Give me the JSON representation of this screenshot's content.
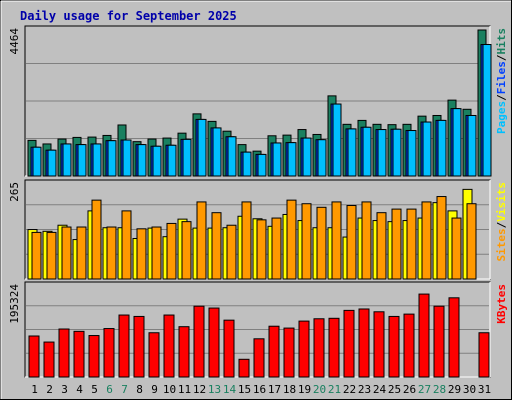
{
  "chart_data": {
    "type": "bar",
    "title": "Daily usage for September 2025",
    "x": [
      "1",
      "2",
      "3",
      "4",
      "5",
      "6",
      "7",
      "8",
      "9",
      "10",
      "11",
      "12",
      "13",
      "14",
      "15",
      "16",
      "17",
      "18",
      "19",
      "20",
      "21",
      "22",
      "23",
      "24",
      "25",
      "26",
      "27",
      "28",
      "29",
      "30",
      "31"
    ],
    "weekend_days": [
      "6",
      "7",
      "13",
      "14",
      "20",
      "21",
      "27",
      "28"
    ],
    "panels": [
      {
        "id": "hits_files_pages",
        "ymax_label": "4464",
        "ymax": 4464,
        "legend": [
          "Pages",
          "/",
          "Files",
          "/",
          "Hits"
        ],
        "series": [
          {
            "name": "Hits",
            "color": "#1a8060",
            "values": [
              1090,
              980,
              1130,
              1180,
              1190,
              1240,
              1560,
              1050,
              1130,
              1160,
              1310,
              1900,
              1670,
              1370,
              960,
              760,
              1230,
              1250,
              1420,
              1270,
              2450,
              1580,
              1700,
              1580,
              1570,
              1580,
              1830,
              1850,
              2320,
              2040,
              4464
            ]
          },
          {
            "name": "Files",
            "color": "#0040ff",
            "values": [
              880,
              790,
              980,
              960,
              980,
              1080,
              1100,
              960,
              910,
              940,
              1120,
              1730,
              1470,
              1200,
              730,
              660,
              1010,
              1020,
              1160,
              1110,
              2200,
              1440,
              1490,
              1420,
              1430,
              1390,
              1650,
              1700,
              2060,
              1850,
              4020
            ]
          },
          {
            "name": "Pages",
            "color": "#00c0ff",
            "values": [
              880,
              790,
              980,
              960,
              980,
              1080,
              1100,
              960,
              910,
              940,
              1120,
              1730,
              1470,
              1200,
              730,
              660,
              1010,
              1020,
              1160,
              1110,
              2200,
              1440,
              1490,
              1420,
              1430,
              1390,
              1650,
              1700,
              2060,
              1850,
              4020
            ]
          }
        ]
      },
      {
        "id": "visits_sites",
        "ymax_label": "265",
        "ymax": 265,
        "legend": [
          "Sites",
          "/",
          "Visits"
        ],
        "series": [
          {
            "name": "Visits",
            "color": "#ffff00",
            "values": [
              138,
              133,
              150,
              110,
              190,
              143,
              143,
              113,
              142,
              118,
              167,
              142,
              142,
              143,
              175,
              168,
              147,
              180,
              163,
              143,
              143,
              117,
              170,
              163,
              160,
              163,
              170,
              213,
              190,
              250,
              0
            ]
          },
          {
            "name": "Sites",
            "color": "#ff9900",
            "values": [
              130,
              130,
              145,
              145,
              220,
              145,
              190,
              140,
              145,
              155,
              160,
              215,
              185,
              150,
              215,
              165,
              170,
              220,
              210,
              200,
              215,
              205,
              215,
              185,
              195,
              195,
              215,
              230,
              170,
              210,
              0
            ]
          }
        ]
      },
      {
        "id": "kbytes",
        "ymax_label": "195324",
        "ymax": 195324,
        "legend": [
          "KBytes"
        ],
        "series": [
          {
            "name": "KBytes",
            "color": "#ff0000",
            "values": [
              88000,
              75000,
              103000,
              98000,
              89000,
              104000,
              133000,
              130000,
              95000,
              133000,
              108000,
              152000,
              148000,
              122000,
              38000,
              82000,
              109000,
              105000,
              120000,
              125000,
              126000,
              143000,
              146000,
              140000,
              130000,
              135000,
              178000,
              152000,
              170000,
              0,
              95000
            ]
          }
        ]
      }
    ]
  }
}
